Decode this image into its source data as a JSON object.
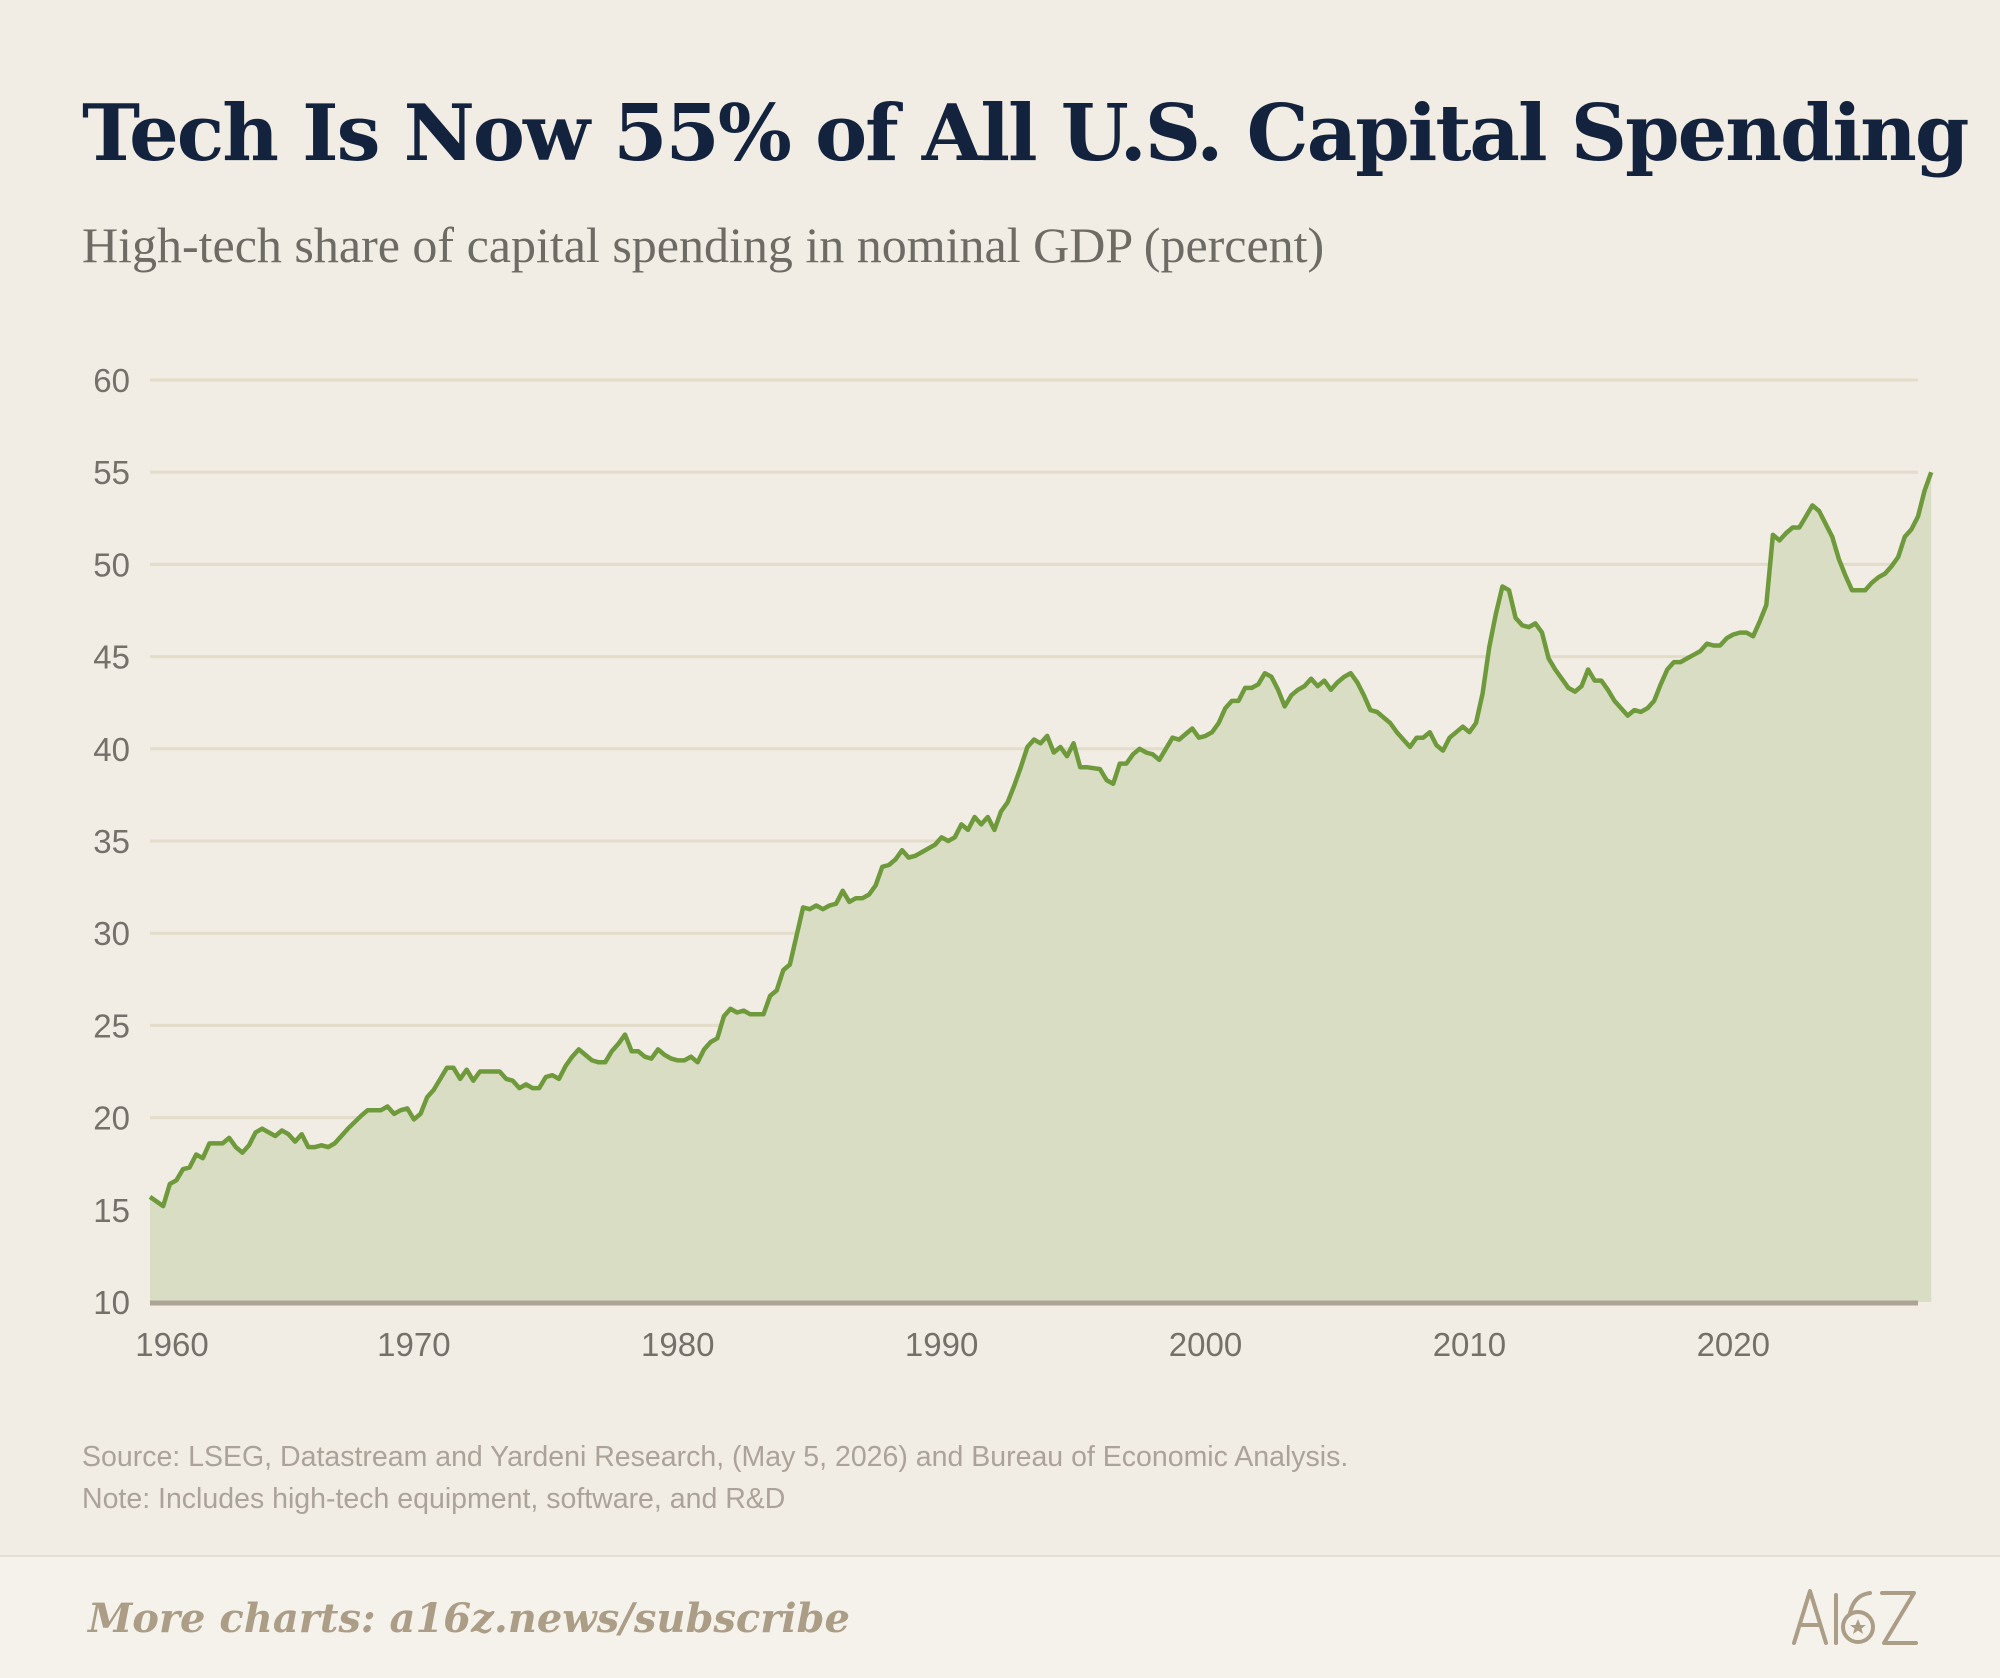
{
  "header": {
    "title": "Tech Is Now 55% of All U.S. Capital Spending",
    "subtitle": "High-tech share of capital spending in nominal GDP (percent)"
  },
  "chart_data": {
    "type": "area",
    "title": "Tech Is Now 55% of All U.S. Capital Spending",
    "subtitle": "High-tech share of capital spending in nominal GDP (percent)",
    "xlabel": "",
    "ylabel": "",
    "xlim": [
      1960,
      2027
    ],
    "ylim": [
      10,
      60
    ],
    "x_ticks": [
      1960,
      1970,
      1980,
      1990,
      2000,
      2010,
      2020
    ],
    "y_ticks": [
      10,
      15,
      20,
      25,
      30,
      35,
      40,
      45,
      50,
      55,
      60
    ],
    "grid": true,
    "legend": "none",
    "colors": {
      "line": "#6f9a3c",
      "fill": "#d8ddc4",
      "grid": "#e2dcc9",
      "axis": "#aea496"
    },
    "series": [
      {
        "values": [
          [
            1960.0,
            15.7
          ],
          [
            1960.5,
            15.2
          ],
          [
            1960.75,
            16.4
          ],
          [
            1961.0,
            16.6
          ],
          [
            1961.25,
            17.2
          ],
          [
            1961.5,
            17.3
          ],
          [
            1961.75,
            18.0
          ],
          [
            1962.0,
            17.8
          ],
          [
            1962.25,
            18.6
          ],
          [
            1962.75,
            18.6
          ],
          [
            1963.0,
            18.9
          ],
          [
            1963.25,
            18.4
          ],
          [
            1963.5,
            18.1
          ],
          [
            1963.75,
            18.5
          ],
          [
            1964.0,
            19.2
          ],
          [
            1964.25,
            19.4
          ],
          [
            1964.5,
            19.2
          ],
          [
            1964.75,
            19.0
          ],
          [
            1965.0,
            19.3
          ],
          [
            1965.25,
            19.1
          ],
          [
            1965.5,
            18.7
          ],
          [
            1965.75,
            19.1
          ],
          [
            1966.0,
            18.4
          ],
          [
            1966.25,
            18.4
          ],
          [
            1966.5,
            18.5
          ],
          [
            1966.75,
            18.4
          ],
          [
            1967.0,
            18.6
          ],
          [
            1967.5,
            19.4
          ],
          [
            1968.0,
            20.1
          ],
          [
            1968.25,
            20.4
          ],
          [
            1968.75,
            20.4
          ],
          [
            1969.0,
            20.6
          ],
          [
            1969.25,
            20.2
          ],
          [
            1969.5,
            20.4
          ],
          [
            1969.75,
            20.5
          ],
          [
            1970.0,
            19.9
          ],
          [
            1970.25,
            20.2
          ],
          [
            1970.5,
            21.1
          ],
          [
            1970.75,
            21.5
          ],
          [
            1971.0,
            22.1
          ],
          [
            1971.25,
            22.7
          ],
          [
            1971.5,
            22.7
          ],
          [
            1971.75,
            22.1
          ],
          [
            1972.0,
            22.6
          ],
          [
            1972.25,
            22.0
          ],
          [
            1972.5,
            22.5
          ],
          [
            1973.25,
            22.5
          ],
          [
            1973.5,
            22.1
          ],
          [
            1973.75,
            22.0
          ],
          [
            1974.0,
            21.6
          ],
          [
            1974.25,
            21.8
          ],
          [
            1974.5,
            21.6
          ],
          [
            1974.75,
            21.6
          ],
          [
            1975.0,
            22.2
          ],
          [
            1975.25,
            22.3
          ],
          [
            1975.5,
            22.1
          ],
          [
            1975.75,
            22.8
          ],
          [
            1976.0,
            23.3
          ],
          [
            1976.25,
            23.7
          ],
          [
            1976.5,
            23.4
          ],
          [
            1976.75,
            23.1
          ],
          [
            1977.0,
            23.0
          ],
          [
            1977.25,
            23.0
          ],
          [
            1977.5,
            23.6
          ],
          [
            1977.75,
            24.0
          ],
          [
            1978.0,
            24.5
          ],
          [
            1978.25,
            23.6
          ],
          [
            1978.5,
            23.6
          ],
          [
            1978.75,
            23.3
          ],
          [
            1979.0,
            23.2
          ],
          [
            1979.25,
            23.7
          ],
          [
            1979.5,
            23.4
          ],
          [
            1979.75,
            23.2
          ],
          [
            1980.0,
            23.1
          ],
          [
            1980.25,
            23.1
          ],
          [
            1980.5,
            23.3
          ],
          [
            1980.75,
            23.0
          ],
          [
            1981.0,
            23.7
          ],
          [
            1981.25,
            24.1
          ],
          [
            1981.5,
            24.3
          ],
          [
            1981.75,
            25.5
          ],
          [
            1982.0,
            25.9
          ],
          [
            1982.25,
            25.7
          ],
          [
            1982.5,
            25.8
          ],
          [
            1982.75,
            25.6
          ],
          [
            1983.25,
            25.6
          ],
          [
            1983.5,
            26.6
          ],
          [
            1983.75,
            26.9
          ],
          [
            1984.0,
            28.0
          ],
          [
            1984.25,
            28.3
          ],
          [
            1984.75,
            31.4
          ],
          [
            1985.0,
            31.3
          ],
          [
            1985.25,
            31.5
          ],
          [
            1985.5,
            31.3
          ],
          [
            1985.75,
            31.5
          ],
          [
            1986.0,
            31.6
          ],
          [
            1986.25,
            32.3
          ],
          [
            1986.5,
            31.7
          ],
          [
            1986.75,
            31.9
          ],
          [
            1987.0,
            31.9
          ],
          [
            1987.25,
            32.1
          ],
          [
            1987.5,
            32.6
          ],
          [
            1987.75,
            33.6
          ],
          [
            1988.0,
            33.7
          ],
          [
            1988.25,
            34.0
          ],
          [
            1988.5,
            34.5
          ],
          [
            1988.75,
            34.1
          ],
          [
            1989.0,
            34.2
          ],
          [
            1989.25,
            34.4
          ],
          [
            1989.5,
            34.6
          ],
          [
            1989.75,
            34.8
          ],
          [
            1990.0,
            35.2
          ],
          [
            1990.25,
            35.0
          ],
          [
            1990.5,
            35.2
          ],
          [
            1990.75,
            35.9
          ],
          [
            1991.0,
            35.6
          ],
          [
            1991.25,
            36.3
          ],
          [
            1991.5,
            35.9
          ],
          [
            1991.75,
            36.3
          ],
          [
            1992.0,
            35.6
          ],
          [
            1992.25,
            36.6
          ],
          [
            1992.5,
            37.1
          ],
          [
            1992.75,
            38.0
          ],
          [
            1993.0,
            39.0
          ],
          [
            1993.25,
            40.1
          ],
          [
            1993.5,
            40.5
          ],
          [
            1993.75,
            40.3
          ],
          [
            1994.0,
            40.7
          ],
          [
            1994.25,
            39.8
          ],
          [
            1994.5,
            40.1
          ],
          [
            1994.75,
            39.6
          ],
          [
            1995.0,
            40.3
          ],
          [
            1995.25,
            39.0
          ],
          [
            1995.5,
            39.0
          ],
          [
            1996.0,
            38.9
          ],
          [
            1996.25,
            38.3
          ],
          [
            1996.5,
            38.1
          ],
          [
            1996.75,
            39.2
          ],
          [
            1997.0,
            39.2
          ],
          [
            1997.25,
            39.7
          ],
          [
            1997.5,
            40.0
          ],
          [
            1997.75,
            39.8
          ],
          [
            1998.0,
            39.7
          ],
          [
            1998.25,
            39.4
          ],
          [
            1998.5,
            40.0
          ],
          [
            1998.75,
            40.6
          ],
          [
            1999.0,
            40.5
          ],
          [
            1999.25,
            40.8
          ],
          [
            1999.5,
            41.1
          ],
          [
            1999.75,
            40.6
          ],
          [
            2000.0,
            40.7
          ],
          [
            2000.25,
            40.9
          ],
          [
            2000.5,
            41.4
          ],
          [
            2000.75,
            42.2
          ],
          [
            2001.0,
            42.6
          ],
          [
            2001.25,
            42.6
          ],
          [
            2001.5,
            43.3
          ],
          [
            2001.75,
            43.3
          ],
          [
            2002.0,
            43.5
          ],
          [
            2002.25,
            44.1
          ],
          [
            2002.5,
            43.9
          ],
          [
            2002.75,
            43.2
          ],
          [
            2003.0,
            42.3
          ],
          [
            2003.25,
            42.9
          ],
          [
            2003.5,
            43.2
          ],
          [
            2003.75,
            43.4
          ],
          [
            2004.0,
            43.8
          ],
          [
            2004.25,
            43.4
          ],
          [
            2004.5,
            43.7
          ],
          [
            2004.75,
            43.2
          ],
          [
            2005.0,
            43.6
          ],
          [
            2005.25,
            43.9
          ],
          [
            2005.5,
            44.1
          ],
          [
            2005.75,
            43.6
          ],
          [
            2006.0,
            42.9
          ],
          [
            2006.25,
            42.1
          ],
          [
            2006.5,
            42.0
          ],
          [
            2006.75,
            41.7
          ],
          [
            2007.0,
            41.4
          ],
          [
            2007.25,
            40.9
          ],
          [
            2007.5,
            40.5
          ],
          [
            2007.75,
            40.1
          ],
          [
            2008.0,
            40.6
          ],
          [
            2008.25,
            40.6
          ],
          [
            2008.5,
            40.9
          ],
          [
            2008.75,
            40.2
          ],
          [
            2009.0,
            39.9
          ],
          [
            2009.25,
            40.6
          ],
          [
            2009.5,
            40.9
          ],
          [
            2009.75,
            41.2
          ],
          [
            2010.0,
            40.9
          ],
          [
            2010.25,
            41.4
          ],
          [
            2010.5,
            43.0
          ],
          [
            2010.75,
            45.5
          ],
          [
            2011.0,
            47.3
          ],
          [
            2011.25,
            48.8
          ],
          [
            2011.5,
            48.6
          ],
          [
            2011.75,
            47.1
          ],
          [
            2012.0,
            46.7
          ],
          [
            2012.25,
            46.6
          ],
          [
            2012.5,
            46.8
          ],
          [
            2012.75,
            46.3
          ],
          [
            2013.0,
            44.9
          ],
          [
            2013.25,
            44.3
          ],
          [
            2013.5,
            43.8
          ],
          [
            2013.75,
            43.3
          ],
          [
            2014.0,
            43.1
          ],
          [
            2014.25,
            43.4
          ],
          [
            2014.5,
            44.3
          ],
          [
            2014.75,
            43.7
          ],
          [
            2015.0,
            43.7
          ],
          [
            2015.25,
            43.2
          ],
          [
            2015.5,
            42.6
          ],
          [
            2015.75,
            42.2
          ],
          [
            2016.0,
            41.8
          ],
          [
            2016.25,
            42.1
          ],
          [
            2016.5,
            42.0
          ],
          [
            2016.75,
            42.2
          ],
          [
            2017.0,
            42.6
          ],
          [
            2017.25,
            43.5
          ],
          [
            2017.5,
            44.3
          ],
          [
            2017.75,
            44.7
          ],
          [
            2018.0,
            44.7
          ],
          [
            2018.25,
            44.9
          ],
          [
            2018.5,
            45.1
          ],
          [
            2018.75,
            45.3
          ],
          [
            2019.0,
            45.7
          ],
          [
            2019.25,
            45.6
          ],
          [
            2019.5,
            45.6
          ],
          [
            2019.75,
            46.0
          ],
          [
            2020.0,
            46.2
          ],
          [
            2020.25,
            46.3
          ],
          [
            2020.5,
            46.3
          ],
          [
            2020.75,
            46.1
          ],
          [
            2021.0,
            46.9
          ],
          [
            2021.25,
            47.8
          ],
          [
            2021.5,
            51.6
          ],
          [
            2021.75,
            51.3
          ],
          [
            2022.0,
            51.7
          ],
          [
            2022.25,
            52.0
          ],
          [
            2022.5,
            52.0
          ],
          [
            2022.75,
            52.6
          ],
          [
            2023.0,
            53.2
          ],
          [
            2023.25,
            52.9
          ],
          [
            2023.5,
            52.2
          ],
          [
            2023.75,
            51.5
          ],
          [
            2024.0,
            50.3
          ],
          [
            2024.25,
            49.4
          ],
          [
            2024.5,
            48.6
          ],
          [
            2025.0,
            48.6
          ],
          [
            2025.25,
            49.0
          ],
          [
            2025.5,
            49.3
          ],
          [
            2025.75,
            49.5
          ],
          [
            2026.0,
            49.9
          ],
          [
            2026.25,
            50.4
          ],
          [
            2026.5,
            51.5
          ],
          [
            2026.75,
            51.9
          ],
          [
            2027.0,
            52.6
          ],
          [
            2027.25,
            54.0
          ],
          [
            2027.5,
            55.0
          ]
        ]
      }
    ]
  },
  "source": {
    "line1": "Source: LSEG, Datastream and Yardeni Research, (May 5, 2026) and Bureau of Economic Analysis.",
    "line2": "Note: Includes high-tech equipment, software, and R&D"
  },
  "footer": {
    "cta": "More charts: a16z.news/subscribe",
    "logo": "A16Z"
  }
}
